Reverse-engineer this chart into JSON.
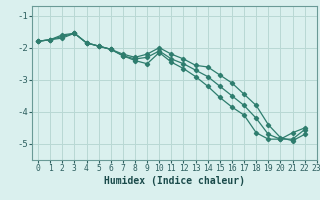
{
  "xlabel": "Humidex (Indice chaleur)",
  "ylabel": "",
  "bg_color": "#daf0ee",
  "line_color": "#2e7d6e",
  "grid_color": "#b8d8d4",
  "xlim": [
    -0.5,
    23.0
  ],
  "ylim": [
    -5.5,
    -0.7
  ],
  "yticks": [
    -5,
    -4,
    -3,
    -2,
    -1
  ],
  "xticks": [
    0,
    1,
    2,
    3,
    4,
    5,
    6,
    7,
    8,
    9,
    10,
    11,
    12,
    13,
    14,
    15,
    16,
    17,
    18,
    19,
    20,
    21,
    22,
    23
  ],
  "series": [
    {
      "x": [
        0,
        1,
        2,
        3,
        4,
        5,
        6,
        7,
        8,
        9,
        10,
        11,
        12,
        13,
        14,
        15,
        16,
        17,
        18,
        19,
        20,
        21,
        22
      ],
      "y": [
        -1.8,
        -1.75,
        -1.6,
        -1.55,
        -1.85,
        -1.95,
        -2.05,
        -2.2,
        -2.3,
        -2.2,
        -2.0,
        -2.2,
        -2.35,
        -2.55,
        -2.6,
        -2.85,
        -3.1,
        -3.45,
        -3.8,
        -4.4,
        -4.8,
        -4.9,
        -4.7
      ]
    },
    {
      "x": [
        0,
        1,
        2,
        3,
        4,
        5,
        6,
        7,
        8,
        9,
        10,
        11,
        12,
        13,
        14,
        15,
        16,
        17,
        18,
        19,
        20,
        21,
        22
      ],
      "y": [
        -1.8,
        -1.75,
        -1.7,
        -1.55,
        -1.85,
        -1.95,
        -2.05,
        -2.25,
        -2.4,
        -2.5,
        -2.15,
        -2.45,
        -2.65,
        -2.9,
        -3.2,
        -3.55,
        -3.85,
        -4.1,
        -4.65,
        -4.85,
        -4.85,
        -4.65,
        -4.5
      ]
    },
    {
      "x": [
        0,
        1,
        2,
        3,
        4,
        5,
        6,
        7,
        8,
        9,
        10,
        11,
        12,
        13,
        14,
        15,
        16,
        17,
        18,
        19,
        20,
        21,
        22
      ],
      "y": [
        -1.8,
        -1.75,
        -1.65,
        -1.55,
        -1.85,
        -1.95,
        -2.05,
        -2.25,
        -2.35,
        -2.3,
        -2.1,
        -2.35,
        -2.5,
        -2.7,
        -2.9,
        -3.2,
        -3.5,
        -3.8,
        -4.2,
        -4.7,
        -4.85,
        -4.85,
        -4.55
      ]
    }
  ]
}
